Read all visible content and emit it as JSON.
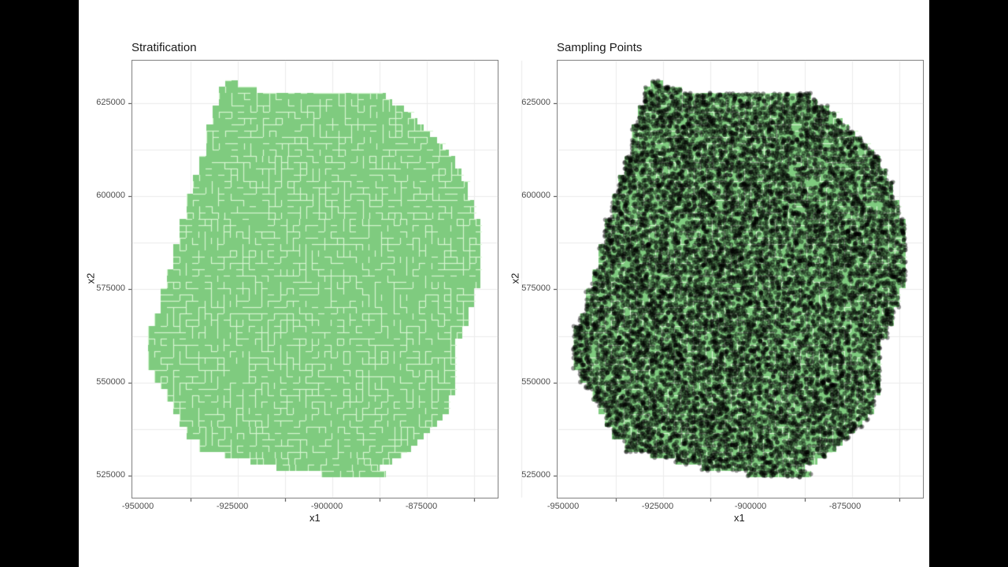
{
  "chart_data": [
    {
      "type": "map-grid",
      "title": "Stratification",
      "xlabel": "x1",
      "ylabel": "x2",
      "xticks": [
        -950000,
        -925000,
        -900000,
        -875000
      ],
      "xtick_labels": [
        "-950000",
        "-925000",
        "-900000",
        "-875000"
      ],
      "yticks": [
        525000,
        550000,
        575000,
        600000,
        625000
      ],
      "ytick_labels": [
        "525000",
        "550000",
        "575000",
        "600000",
        "625000"
      ],
      "xlim": [
        -951500,
        -854000
      ],
      "ylim": [
        519000,
        636000
      ],
      "grid": true,
      "fill_color": "#7FCB7F",
      "stratum_border_color": "#D6F5D0",
      "description": "Region tessellated into compact irregular polyomino strata on a fine grid"
    },
    {
      "type": "scatter",
      "title": "Sampling Points",
      "xlabel": "x1",
      "ylabel": "x2",
      "xticks": [
        -950000,
        -925000,
        -900000,
        -875000
      ],
      "xtick_labels": [
        "-950000",
        "-925000",
        "-900000",
        "-875000"
      ],
      "yticks": [
        525000,
        550000,
        575000,
        600000,
        625000
      ],
      "ytick_labels": [
        "525000",
        "550000",
        "575000",
        "600000",
        "625000"
      ],
      "xlim": [
        -951500,
        -854000
      ],
      "ylim": [
        519000,
        636000
      ],
      "grid": true,
      "fill_color": "#7FCB7F",
      "point_color": "#000000",
      "point_alpha": 0.45,
      "description": "Several thousand random sampling points overlaid on the stratified region"
    }
  ],
  "panels": {
    "left": {
      "title": "Stratification",
      "xlabel": "x1",
      "ylabel": "x2"
    },
    "right": {
      "title": "Sampling Points",
      "xlabel": "x1",
      "ylabel": "x2"
    }
  },
  "axes": {
    "yticks": [
      "625000",
      "600000",
      "575000",
      "550000",
      "525000"
    ],
    "xticks": [
      "-950000",
      "-925000",
      "-900000",
      "-875000"
    ]
  },
  "shape_rows": [
    [
      102,
      286,
      302
    ],
    [
      110,
      278,
      326
    ],
    [
      118,
      278,
      490
    ],
    [
      126,
      278,
      498
    ],
    [
      134,
      270,
      513
    ],
    [
      142,
      270,
      522
    ],
    [
      150,
      270,
      530
    ],
    [
      158,
      262,
      538
    ],
    [
      166,
      262,
      546
    ],
    [
      174,
      262,
      555
    ],
    [
      182,
      262,
      562
    ],
    [
      190,
      262,
      570
    ],
    [
      198,
      253,
      578
    ],
    [
      206,
      253,
      578
    ],
    [
      214,
      253,
      586
    ],
    [
      222,
      245,
      586
    ],
    [
      230,
      245,
      594
    ],
    [
      238,
      245,
      594
    ],
    [
      246,
      237,
      594
    ],
    [
      254,
      237,
      602
    ],
    [
      262,
      237,
      602
    ],
    [
      270,
      237,
      602
    ],
    [
      278,
      228,
      610
    ],
    [
      286,
      228,
      610
    ],
    [
      294,
      228,
      610
    ],
    [
      302,
      228,
      610
    ],
    [
      310,
      220,
      610
    ],
    [
      318,
      220,
      610
    ],
    [
      326,
      220,
      610
    ],
    [
      334,
      220,
      610
    ],
    [
      342,
      212,
      610
    ],
    [
      350,
      212,
      610
    ],
    [
      358,
      212,
      610
    ],
    [
      366,
      204,
      602
    ],
    [
      374,
      204,
      602
    ],
    [
      382,
      204,
      602
    ],
    [
      390,
      204,
      595
    ],
    [
      398,
      196,
      595
    ],
    [
      406,
      196,
      595
    ],
    [
      414,
      188,
      587
    ],
    [
      422,
      188,
      587
    ],
    [
      430,
      188,
      578
    ],
    [
      438,
      188,
      578
    ],
    [
      446,
      188,
      578
    ],
    [
      454,
      188,
      578
    ],
    [
      462,
      188,
      578
    ],
    [
      470,
      196,
      578
    ],
    [
      478,
      196,
      578
    ],
    [
      486,
      204,
      578
    ],
    [
      494,
      212,
      578
    ],
    [
      502,
      212,
      570
    ],
    [
      510,
      220,
      570
    ],
    [
      518,
      220,
      570
    ],
    [
      526,
      228,
      562
    ],
    [
      534,
      228,
      555
    ],
    [
      542,
      237,
      546
    ],
    [
      550,
      237,
      538
    ],
    [
      558,
      253,
      530
    ],
    [
      566,
      253,
      522
    ],
    [
      574,
      285,
      510
    ],
    [
      582,
      318,
      498
    ],
    [
      590,
      351,
      482
    ],
    [
      598,
      408,
      490
    ]
  ]
}
